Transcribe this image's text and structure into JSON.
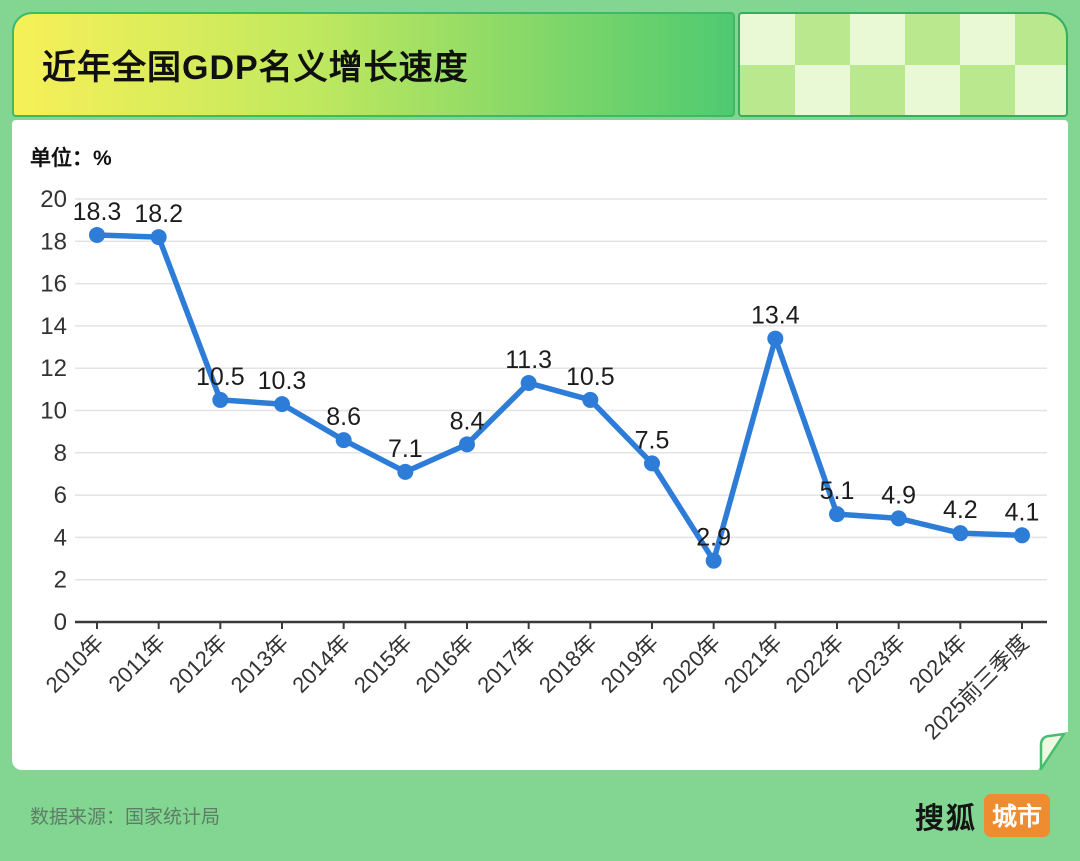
{
  "page": {
    "background_color": "#82d691"
  },
  "header": {
    "title": "近年全国GDP名义增长速度",
    "banner_gradient": [
      "#f7f058",
      "#4fca71"
    ]
  },
  "chart_data": {
    "type": "line",
    "title": "近年全国GDP名义增长速度",
    "unit_label": "单位：%",
    "categories": [
      "2010年",
      "2011年",
      "2012年",
      "2013年",
      "2014年",
      "2015年",
      "2016年",
      "2017年",
      "2018年",
      "2019年",
      "2020年",
      "2021年",
      "2022年",
      "2023年",
      "2024年",
      "2025前三季度"
    ],
    "values": [
      18.3,
      18.2,
      10.5,
      10.3,
      8.6,
      7.1,
      8.4,
      11.3,
      10.5,
      7.5,
      2.9,
      13.4,
      5.1,
      4.9,
      4.2,
      4.1
    ],
    "ylim": [
      0,
      20
    ],
    "ytick_step": 2,
    "grid": true,
    "legend_position": "none",
    "line_color": "#2d7dd8",
    "marker_color": "#2d7dd8",
    "grid_color": "#e3e3e3",
    "axis_color": "#3a3a3a",
    "value_label_color": "#1c1c1c",
    "tick_label_color": "#333333"
  },
  "footer": {
    "source": "数据来源：国家统计局",
    "logo": {
      "brand": "搜狐",
      "badge": "城市",
      "badge_color": "#ee8c2f"
    }
  }
}
